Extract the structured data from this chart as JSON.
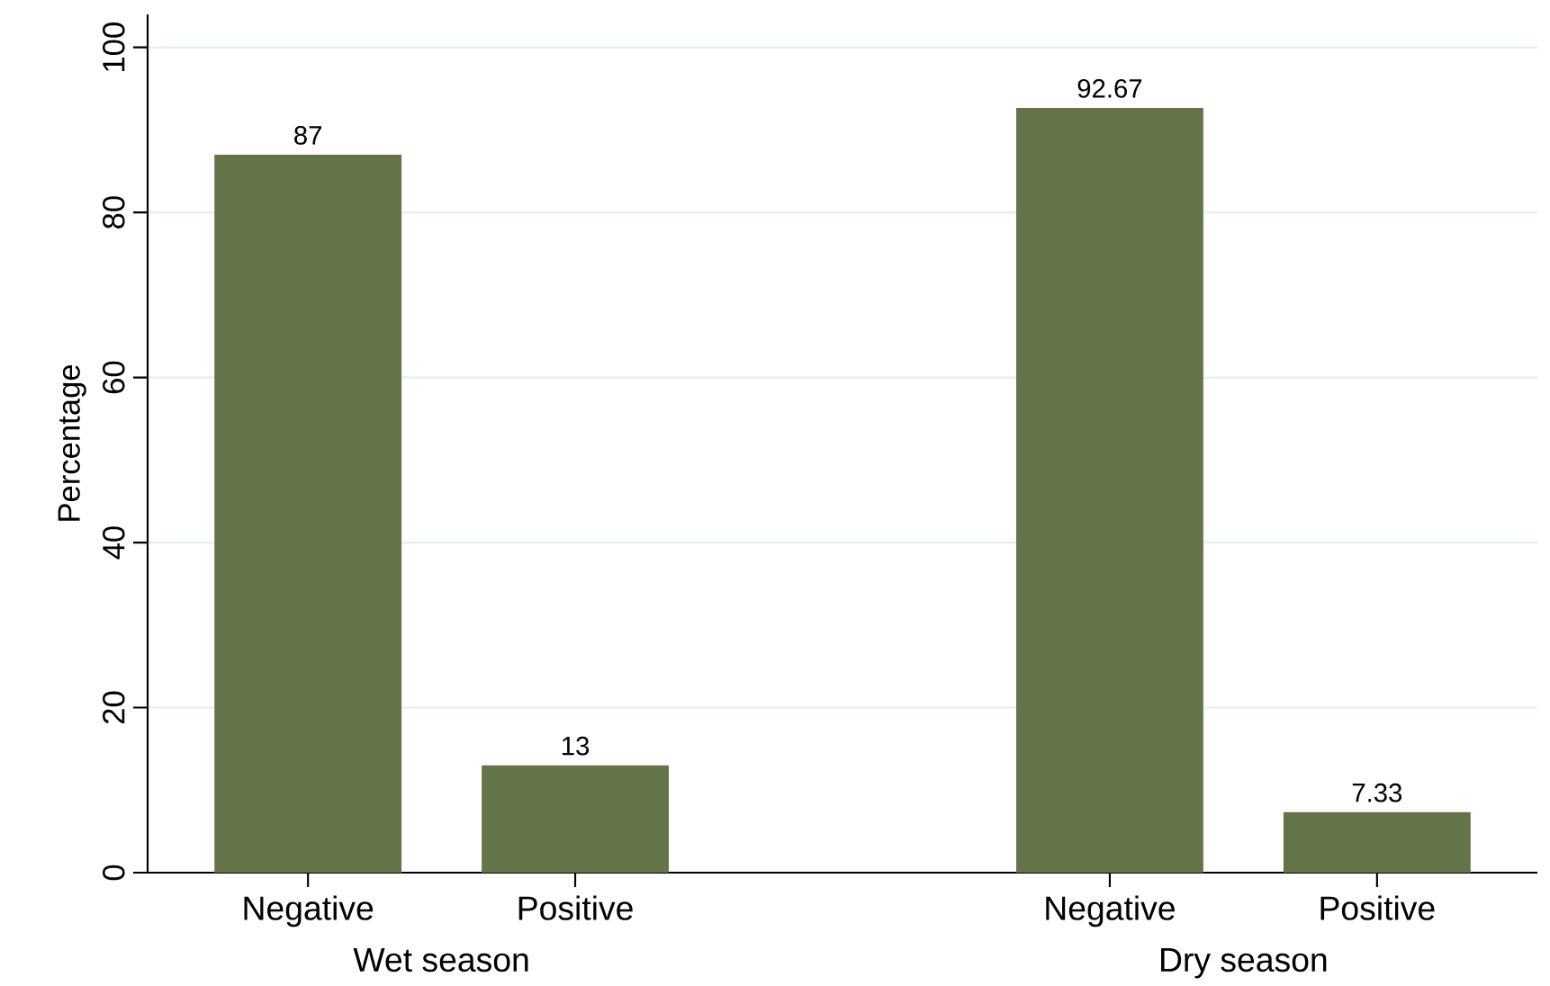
{
  "chart_data": {
    "type": "bar",
    "ylabel": "Percentage",
    "categories": [
      "Negative",
      "Positive",
      null,
      "Negative",
      "Positive"
    ],
    "values": [
      87,
      13,
      null,
      92.67,
      7.33
    ],
    "color": "#627448",
    "annotations": [
      "Wet season",
      "Dry season"
    ],
    "ylim": [
      0,
      104
    ],
    "yticks": [
      0,
      20,
      40,
      60,
      80,
      100
    ],
    "grid": "y",
    "data_labels": true
  }
}
